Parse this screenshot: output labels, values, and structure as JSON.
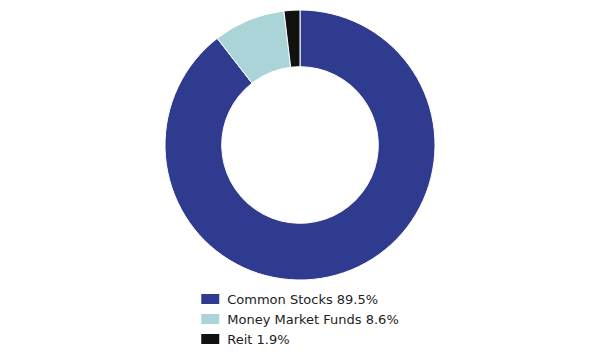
{
  "chart_data": {
    "type": "donut",
    "categories": [
      "Common Stocks 89.5%",
      "Money Market Funds 8.6%",
      "Reit 1.9%"
    ],
    "values": [
      89.5,
      8.6,
      1.9
    ],
    "colors": [
      "#2e3b8e",
      "#aad4d8",
      "#111111"
    ],
    "legend": "bottom"
  }
}
